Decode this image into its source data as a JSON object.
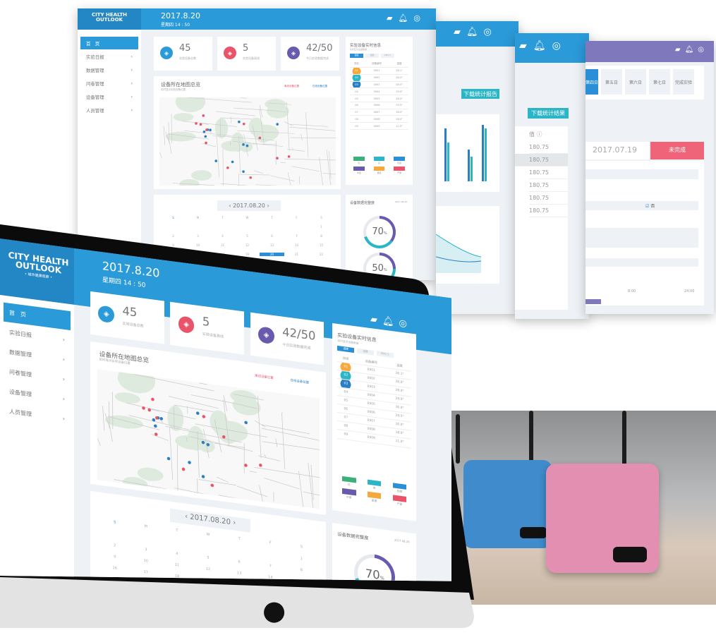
{
  "brand": {
    "line1": "CITY HEALTH",
    "line2": "OUTLOOK",
    "tagline": "• 城市健康观察 •"
  },
  "header": {
    "date": "2017.8.20",
    "time": "星期四 14 : 50",
    "icons": [
      "message-icon",
      "bell-icon",
      "user-icon"
    ]
  },
  "sidebar": {
    "items": [
      {
        "label": "首　页",
        "icon": "dashboard-icon"
      },
      {
        "label": "实验日报",
        "icon": "calendar-icon"
      },
      {
        "label": "数据管理",
        "icon": "data-icon"
      },
      {
        "label": "问卷管理",
        "icon": "document-icon"
      },
      {
        "label": "设备管理",
        "icon": "device-icon"
      },
      {
        "label": "人员管理",
        "icon": "people-icon"
      }
    ]
  },
  "stats": [
    {
      "value": "45",
      "label": "实验设备总数",
      "color": "#2a9ad8"
    },
    {
      "value": "5",
      "label": "实验设备离线",
      "color": "#e9546b"
    },
    {
      "value": "42/50",
      "label": "今日实验数据完成",
      "color": "#6a5aad"
    }
  ],
  "map": {
    "title": "设备所在地图总览",
    "subtitle": "实时显示实验设备位置",
    "legend_offline": "离线设备位置",
    "legend_online": "在线设备位置",
    "offline_color": "#e9546b",
    "online_color": "#2a7fc4"
  },
  "realtime": {
    "title": "实验设备实时信息",
    "subtitle": "实时显示设备数据",
    "tabs": [
      "温度",
      "湿度",
      "PM2.5"
    ],
    "columns": [
      "排名",
      "设备编号",
      "温度"
    ],
    "rows": [
      [
        "01",
        "0001",
        "26.1°"
      ],
      [
        "02",
        "0002",
        "26.0°"
      ],
      [
        "03",
        "0003",
        "28.0°"
      ],
      [
        "04",
        "0004",
        "29.0°"
      ],
      [
        "05",
        "0005",
        "26.0°"
      ],
      [
        "06",
        "0006",
        "29.5°"
      ],
      [
        "07",
        "0007",
        "16.0°"
      ],
      [
        "08",
        "0008",
        "18.0°"
      ],
      [
        "09",
        "0009",
        "11.0°"
      ]
    ],
    "legend": [
      {
        "label": "优",
        "color": "#3db07a"
      },
      {
        "label": "良",
        "color": "#2bb5c6"
      },
      {
        "label": "轻度",
        "color": "#2a8fd8"
      },
      {
        "label": "中度",
        "color": "#6a5aad"
      },
      {
        "label": "重度",
        "color": "#f5a93a"
      },
      {
        "label": "严重",
        "color": "#e9546b"
      }
    ]
  },
  "calendar": {
    "month": "2017.08.20",
    "weekdays": [
      "S",
      "M",
      "T",
      "W",
      "T",
      "F",
      "S"
    ],
    "days": [
      "",
      "",
      "",
      "",
      "",
      "",
      "1",
      "2",
      "3",
      "4",
      "5",
      "6",
      "7",
      "8",
      "9",
      "10",
      "11",
      "12",
      "13",
      "14",
      "15",
      "16",
      "17",
      "18",
      "19",
      "20",
      "21",
      "22"
    ],
    "selected": "20"
  },
  "completeness": {
    "title": "设备数据完整度",
    "date": "2017.08.20",
    "percent1": 70,
    "percent1_label": "70",
    "percent2": 50,
    "percent2_label": "50",
    "unit": "%"
  },
  "screen2": {
    "button": "下载统计报告"
  },
  "screen3": {
    "button": "下载统计结果",
    "column": "值 ⓘ",
    "values": [
      "180.75",
      "180.75",
      "180.75",
      "180.75",
      "180.75",
      "180.75"
    ]
  },
  "screen4": {
    "tabs": [
      "第四日",
      "第五日",
      "第六日",
      "第七日",
      "完成实验"
    ],
    "date": "2017.07.19",
    "status": "未完成",
    "option_checked": "否",
    "times": [
      "8:00",
      "24:00"
    ],
    "header_color": "#7f78bd"
  }
}
